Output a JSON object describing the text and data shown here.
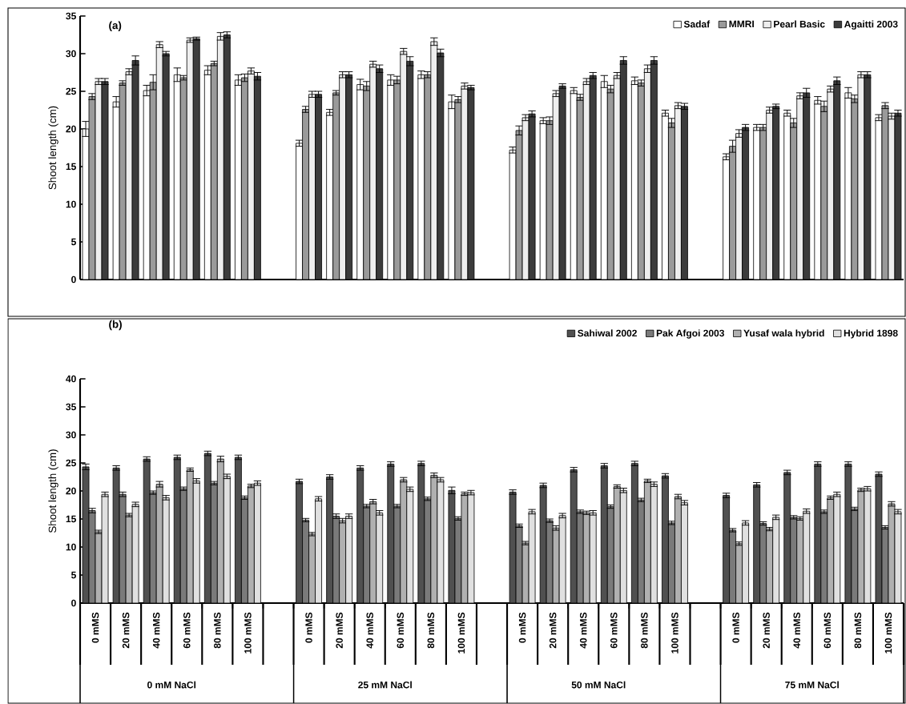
{
  "chart_data": [
    {
      "type": "bar",
      "title": "(a)",
      "ylabel": "Shoot length (cm)",
      "categories": [
        null,
        null,
        null,
        null,
        null,
        null,
        null,
        null,
        null,
        null,
        null,
        null,
        null,
        null,
        null,
        null,
        null,
        null,
        null,
        null,
        null,
        null,
        null,
        null,
        null,
        null,
        null
      ],
      "tick_labels": "y",
      "ylim": [
        0,
        35
      ],
      "yticks": [
        0,
        5,
        10,
        15,
        20,
        25,
        30,
        35
      ],
      "legend": "top right",
      "series": [
        {
          "name": "Sadaf",
          "color": "#ffffff",
          "values": [
            20,
            23.6,
            25.1,
            27.2,
            27.8,
            26.5,
            null,
            18.1,
            22.2,
            25.9,
            26.5,
            27.2,
            23.6,
            null,
            17.2,
            21.1,
            25.1,
            26.3,
            26.4,
            22.1,
            null,
            16.3,
            20.2,
            22.1,
            23.8,
            24.8,
            21.5
          ],
          "errors": [
            1.0,
            0.7,
            0.7,
            0.9,
            0.6,
            0.7,
            null,
            0.4,
            0.4,
            0.7,
            0.7,
            0.5,
            0.9,
            null,
            0.4,
            0.4,
            0.4,
            0.8,
            0.5,
            0.4,
            null,
            0.4,
            0.4,
            0.4,
            0.5,
            0.7,
            0.4
          ]
        },
        {
          "name": "MMRI",
          "color": "#9a9a9a",
          "values": [
            24.3,
            26.1,
            26.2,
            26.8,
            28.7,
            26.8,
            null,
            22.6,
            24.8,
            25.7,
            26.5,
            27.2,
            23.9,
            null,
            19.8,
            21.1,
            24.2,
            25.3,
            26.1,
            20.8,
            null,
            17.7,
            20.2,
            20.8,
            23,
            24,
            23.1
          ],
          "errors": [
            0.4,
            0.3,
            1.0,
            0.3,
            0.3,
            0.5,
            null,
            0.4,
            0.3,
            0.6,
            0.5,
            0.4,
            0.4,
            null,
            0.6,
            0.5,
            0.4,
            0.5,
            0.4,
            0.6,
            null,
            0.8,
            0.4,
            0.6,
            0.7,
            0.5,
            0.4
          ]
        },
        {
          "name": "Pearl Basic",
          "color": "#eeeeee",
          "values": [
            26.3,
            27.6,
            31.2,
            31.8,
            32.3,
            27.7,
            null,
            24.6,
            27.2,
            28.6,
            30.3,
            31.6,
            25.7,
            null,
            21.5,
            24.7,
            26.3,
            27.1,
            28,
            23.1,
            null,
            19.4,
            22.5,
            24.4,
            25.3,
            27.2,
            21.7
          ],
          "errors": [
            0.4,
            0.4,
            0.4,
            0.3,
            0.5,
            0.4,
            null,
            0.4,
            0.4,
            0.4,
            0.4,
            0.5,
            0.4,
            null,
            0.4,
            0.4,
            0.4,
            0.4,
            0.5,
            0.4,
            null,
            0.5,
            0.4,
            0.4,
            0.4,
            0.4,
            0.4
          ]
        },
        {
          "name": "Agaitti 2003",
          "color": "#3c3c3c",
          "values": [
            26.3,
            29.1,
            30,
            32,
            32.5,
            27,
            null,
            24.6,
            27.2,
            28,
            29,
            30.1,
            25.5,
            null,
            22,
            25.7,
            27.1,
            29.1,
            29.1,
            23,
            null,
            20.2,
            23,
            24.8,
            26.4,
            27.2,
            22.1
          ],
          "errors": [
            0.4,
            0.6,
            0.3,
            0.2,
            0.4,
            0.5,
            null,
            0.4,
            0.4,
            0.5,
            0.6,
            0.5,
            0.3,
            null,
            0.4,
            0.3,
            0.4,
            0.5,
            0.5,
            0.4,
            null,
            0.4,
            0.3,
            0.6,
            0.5,
            0.4,
            0.4
          ]
        }
      ]
    },
    {
      "type": "bar",
      "title": "(b)",
      "ylabel": "Shoot length (cm)",
      "categories": [
        "0 mMS",
        "20 mMS",
        "40 mMS",
        "60 mMS",
        "80 mMS",
        "100 mMS",
        null,
        "0 mMS",
        "20 mMS",
        "40 mMS",
        "60 mMS",
        "80 mMS",
        "100 mMS",
        null,
        "0 mMS",
        "20 mMS",
        "40 mMS",
        "60 mMS",
        "80 mMS",
        "100 mMS",
        null,
        "0 mMS",
        "20 mMS",
        "40 mMS",
        "60 mMS",
        "80 mMS",
        "100 mMS"
      ],
      "ylim": [
        0,
        40
      ],
      "yticks": [
        0,
        5,
        10,
        15,
        20,
        25,
        30,
        35,
        40
      ],
      "legend": "top right",
      "annotations": [
        "0 mM NaCl",
        "25 mM NaCl",
        "50 mM NaCl",
        "75 mM NaCl"
      ],
      "series": [
        {
          "name": "Sahiwal 2002",
          "color": "#505050",
          "values": [
            24.3,
            24.1,
            25.7,
            26,
            26.7,
            26,
            null,
            21.7,
            22.5,
            24.1,
            24.8,
            24.9,
            20.1,
            null,
            19.8,
            21,
            23.8,
            24.5,
            24.9,
            22.7,
            null,
            19.2,
            21.1,
            23.3,
            24.8,
            24.8,
            23
          ],
          "errors": [
            0.5,
            0.4,
            0.4,
            0.4,
            0.4,
            0.4,
            null,
            0.4,
            0.4,
            0.4,
            0.4,
            0.4,
            0.6,
            null,
            0.4,
            0.4,
            0.4,
            0.4,
            0.4,
            0.4,
            null,
            0.4,
            0.4,
            0.4,
            0.4,
            0.4,
            0.4
          ]
        },
        {
          "name": "Pak Afgoi 2003",
          "color": "#7a7a7a",
          "values": [
            16.5,
            19.4,
            19.7,
            20.4,
            21.4,
            18.8,
            null,
            14.8,
            15.5,
            17.3,
            17.3,
            18.6,
            15.1,
            null,
            13.8,
            14.7,
            16.3,
            17.2,
            18.4,
            14.3,
            null,
            13,
            14.2,
            15.3,
            16.3,
            16.8,
            13.5
          ],
          "errors": [
            0.4,
            0.4,
            0.3,
            0.3,
            0.3,
            0.3,
            null,
            0.3,
            0.4,
            0.3,
            0.3,
            0.3,
            0.3,
            null,
            0.3,
            0.3,
            0.3,
            0.3,
            0.3,
            0.3,
            null,
            0.3,
            0.3,
            0.3,
            0.3,
            0.3,
            0.3
          ]
        },
        {
          "name": "Yusaf wala hybrid",
          "color": "#b0b0b0",
          "values": [
            12.7,
            15.7,
            21.2,
            23.8,
            25.7,
            20.9,
            null,
            12.3,
            14.7,
            18.1,
            22,
            22.8,
            19.5,
            null,
            10.7,
            13.4,
            16.1,
            20.8,
            21.8,
            19,
            null,
            10.6,
            13.2,
            15.1,
            18.8,
            20.2,
            17.7
          ],
          "errors": [
            0.3,
            0.3,
            0.5,
            0.3,
            0.5,
            0.3,
            null,
            0.3,
            0.4,
            0.4,
            0.4,
            0.4,
            0.3,
            null,
            0.3,
            0.4,
            0.3,
            0.3,
            0.3,
            0.4,
            null,
            0.3,
            0.3,
            0.3,
            0.3,
            0.3,
            0.4
          ]
        },
        {
          "name": "Hybrid 1898",
          "color": "#e0e0e0",
          "values": [
            19.4,
            17.6,
            18.8,
            21.8,
            22.6,
            21.4,
            null,
            18.6,
            15.5,
            16.1,
            20.3,
            22,
            19.7,
            null,
            16.3,
            15.6,
            16.1,
            20.1,
            21.2,
            17.9,
            null,
            14.3,
            15.3,
            16.4,
            19.4,
            20.4,
            16.3
          ],
          "errors": [
            0.4,
            0.4,
            0.4,
            0.4,
            0.4,
            0.4,
            null,
            0.4,
            0.4,
            0.4,
            0.4,
            0.4,
            0.4,
            null,
            0.4,
            0.4,
            0.4,
            0.4,
            0.4,
            0.4,
            null,
            0.4,
            0.4,
            0.4,
            0.4,
            0.4,
            0.4
          ]
        }
      ]
    }
  ]
}
